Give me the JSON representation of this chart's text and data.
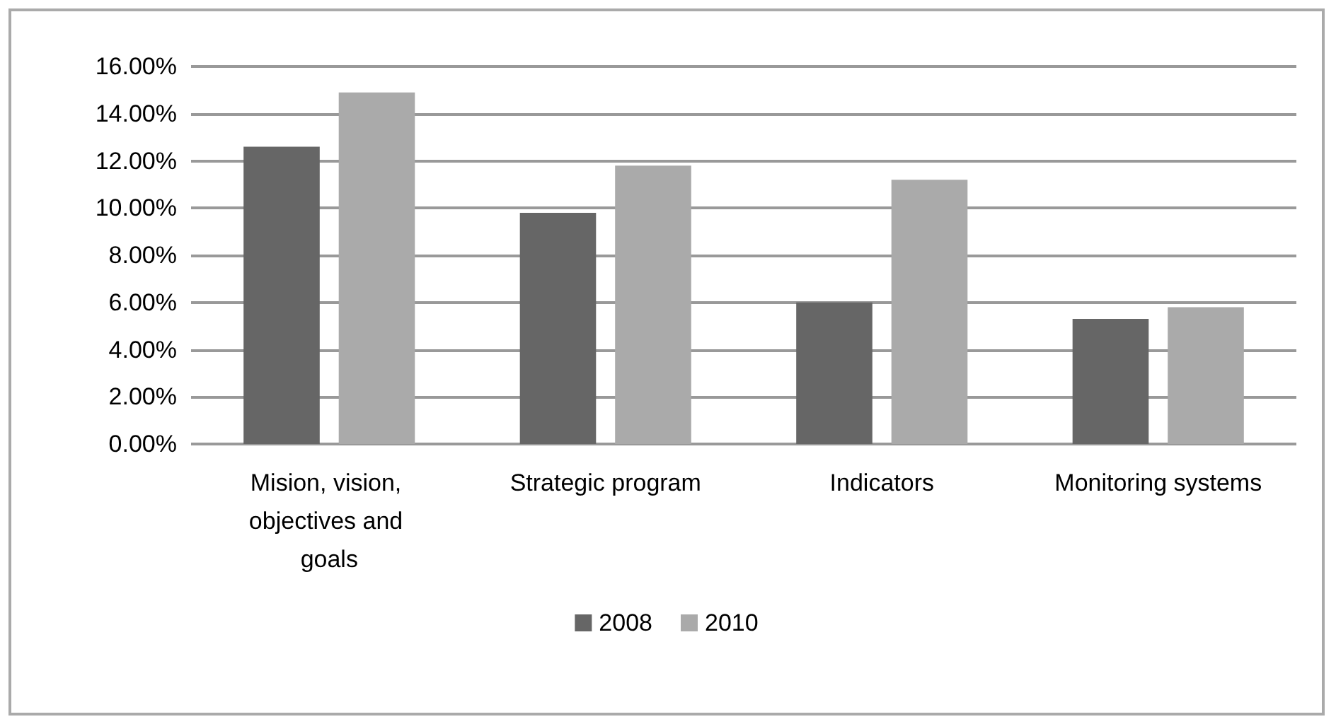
{
  "chart_data": {
    "type": "bar",
    "categories": [
      "Mision, vision, objectives and goals",
      "Strategic program",
      "Indicators",
      "Monitoring systems"
    ],
    "series": [
      {
        "name": "2008",
        "color": "#666666",
        "values": [
          12.6,
          9.8,
          6.0,
          5.3
        ]
      },
      {
        "name": "2010",
        "color": "#aaaaaa",
        "values": [
          14.9,
          11.8,
          11.2,
          5.8
        ]
      }
    ],
    "ylim": [
      0,
      16
    ],
    "yticks": [
      {
        "value": 0,
        "label": "0.00%"
      },
      {
        "value": 2,
        "label": "2.00%"
      },
      {
        "value": 4,
        "label": "4.00%"
      },
      {
        "value": 6,
        "label": "6.00%"
      },
      {
        "value": 8,
        "label": "8.00%"
      },
      {
        "value": 10,
        "label": "10.00%"
      },
      {
        "value": 12,
        "label": "12.00%"
      },
      {
        "value": 14,
        "label": "14.00%"
      },
      {
        "value": 16,
        "label": "16.00%"
      }
    ],
    "grid": true,
    "legend": "bottom"
  }
}
